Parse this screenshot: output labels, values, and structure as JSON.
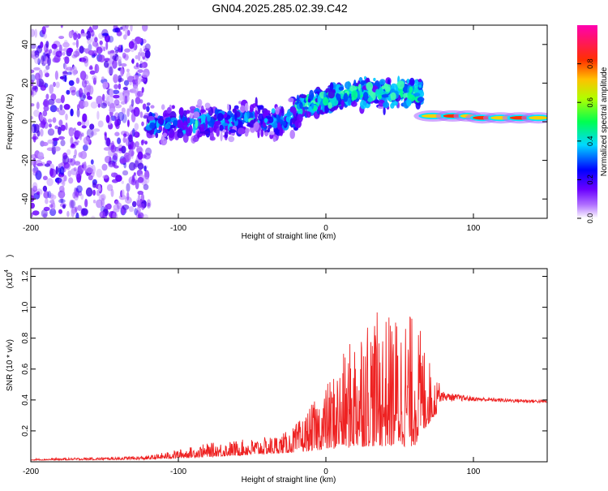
{
  "title": "GN04.2025.285.02.39.C42",
  "chart_data": [
    {
      "type": "heatmap",
      "xlabel": "Height of straight line (km)",
      "ylabel": "Frequency (Hz)",
      "xlim": [
        -200,
        150
      ],
      "ylim": [
        -50,
        50
      ],
      "xticks": [
        -200,
        -100,
        0,
        100
      ],
      "yticks": [
        -40,
        -20,
        0,
        20,
        40
      ],
      "colorbar": {
        "label": "Normalized spectral amplitude",
        "range": [
          0,
          1
        ],
        "ticks": [
          "0.0",
          "0.2",
          "0.4",
          "0.6",
          "0.8"
        ],
        "colors": [
          "#ffffff",
          "#8a00ff",
          "#0000ff",
          "#00ffff",
          "#00ff00",
          "#ffff00",
          "#ff8000",
          "#ff0000",
          "#ff00a0"
        ]
      },
      "segments": [
        {
          "x": [
            -200,
            -120
          ],
          "center_hz": 0,
          "spread_hz": 50,
          "amplitude": 0.1,
          "note": "noise"
        },
        {
          "x": [
            -120,
            -20
          ],
          "center_hz": -2,
          "spread_hz": 12,
          "amplitude": 0.25
        },
        {
          "x": [
            -20,
            65
          ],
          "center_hz": 7,
          "spread_hz": 10,
          "amplitude": 0.35
        },
        {
          "x": [
            65,
            150
          ],
          "center_hz": 2,
          "spread_hz": 2,
          "amplitude": 0.9
        }
      ]
    },
    {
      "type": "line",
      "xlabel": "Height of straight line (km)",
      "ylabel": "SNR (10 * v/v)",
      "y_multiplier": "(x10",
      "y_multiplier_exp": "4",
      "xlim": [
        -200,
        150
      ],
      "ylim": [
        0,
        1.25
      ],
      "xticks": [
        -200,
        -100,
        0,
        100
      ],
      "yticks": [
        "0.2",
        "0.4",
        "0.6",
        "0.8",
        "1.0",
        "1.2"
      ],
      "color": "#ee2222",
      "envelope": [
        {
          "x": -200,
          "y": 0.02
        },
        {
          "x": -150,
          "y": 0.03
        },
        {
          "x": -120,
          "y": 0.04
        },
        {
          "x": -100,
          "y": 0.08
        },
        {
          "x": -80,
          "y": 0.12
        },
        {
          "x": -60,
          "y": 0.14
        },
        {
          "x": -40,
          "y": 0.16
        },
        {
          "x": -25,
          "y": 0.2
        },
        {
          "x": -15,
          "y": 0.3
        },
        {
          "x": 0,
          "y": 0.5
        },
        {
          "x": 15,
          "y": 0.75
        },
        {
          "x": 25,
          "y": 1.0
        },
        {
          "x": 40,
          "y": 0.95
        },
        {
          "x": 55,
          "y": 1.0
        },
        {
          "x": 65,
          "y": 0.85
        },
        {
          "x": 72,
          "y": 0.6
        },
        {
          "x": 80,
          "y": 0.45
        },
        {
          "x": 100,
          "y": 0.42
        },
        {
          "x": 120,
          "y": 0.41
        },
        {
          "x": 150,
          "y": 0.4
        }
      ],
      "floor": [
        {
          "x": -200,
          "y": 0.01
        },
        {
          "x": -120,
          "y": 0.015
        },
        {
          "x": -60,
          "y": 0.04
        },
        {
          "x": -20,
          "y": 0.06
        },
        {
          "x": 0,
          "y": 0.08
        },
        {
          "x": 30,
          "y": 0.1
        },
        {
          "x": 60,
          "y": 0.1
        },
        {
          "x": 70,
          "y": 0.25
        },
        {
          "x": 80,
          "y": 0.37
        },
        {
          "x": 100,
          "y": 0.38
        },
        {
          "x": 150,
          "y": 0.37
        }
      ]
    }
  ]
}
